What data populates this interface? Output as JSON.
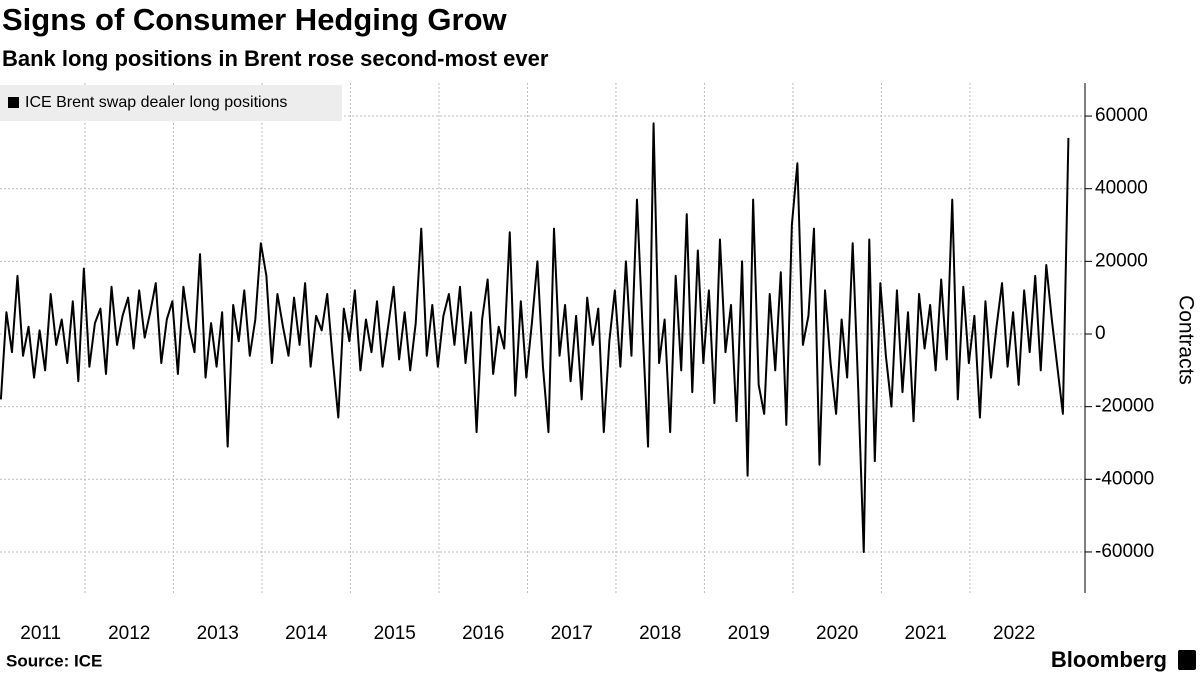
{
  "chart_data": {
    "type": "line",
    "title": "Signs of Consumer Hedging Grow",
    "subtitle": "Bank long positions in Brent rose second-most ever",
    "y_axis_label": "Contracts",
    "source": "Source: ICE",
    "brand": "Bloomberg",
    "grid": true,
    "legend": "top-left",
    "xlim": [
      2011.04,
      2023.3
    ],
    "ylim": [
      -71300,
      69100
    ],
    "yticks": [
      -60000,
      -40000,
      -20000,
      0,
      20000,
      40000,
      60000
    ],
    "xticks": [
      {
        "value": 2011,
        "label": "2011"
      },
      {
        "value": 2012,
        "label": "2012"
      },
      {
        "value": 2013,
        "label": "2013"
      },
      {
        "value": 2014,
        "label": "2014"
      },
      {
        "value": 2015,
        "label": "2015"
      },
      {
        "value": 2016,
        "label": "2016"
      },
      {
        "value": 2017,
        "label": "2017"
      },
      {
        "value": 2018,
        "label": "2018"
      },
      {
        "value": 2019,
        "label": "2019"
      },
      {
        "value": 2020,
        "label": "2020"
      },
      {
        "value": 2021,
        "label": "2021"
      },
      {
        "value": 2022,
        "label": "2022"
      }
    ],
    "x": [
      2011.05,
      2011.1125,
      2011.175,
      2011.2375,
      2011.3,
      2011.3625,
      2011.425,
      2011.4875,
      2011.55,
      2011.6125,
      2011.675,
      2011.7375,
      2011.8,
      2011.8625,
      2011.925,
      2011.9875,
      2012.05,
      2012.1125,
      2012.175,
      2012.2375,
      2012.3,
      2012.3625,
      2012.425,
      2012.4875,
      2012.55,
      2012.6125,
      2012.675,
      2012.7375,
      2012.8,
      2012.8625,
      2012.925,
      2012.9875,
      2013.05,
      2013.1125,
      2013.175,
      2013.2375,
      2013.3,
      2013.3625,
      2013.425,
      2013.4875,
      2013.55,
      2013.6125,
      2013.675,
      2013.7375,
      2013.8,
      2013.8625,
      2013.925,
      2013.9875,
      2014.05,
      2014.1125,
      2014.175,
      2014.2375,
      2014.3,
      2014.3625,
      2014.425,
      2014.4875,
      2014.55,
      2014.6125,
      2014.675,
      2014.7375,
      2014.8,
      2014.8625,
      2014.925,
      2014.9875,
      2015.05,
      2015.1125,
      2015.175,
      2015.2375,
      2015.3,
      2015.3625,
      2015.425,
      2015.4875,
      2015.55,
      2015.6125,
      2015.675,
      2015.7375,
      2015.8,
      2015.8625,
      2015.925,
      2015.9875,
      2016.05,
      2016.1125,
      2016.175,
      2016.2375,
      2016.3,
      2016.3625,
      2016.425,
      2016.4875,
      2016.55,
      2016.6125,
      2016.675,
      2016.7375,
      2016.8,
      2016.8625,
      2016.925,
      2016.9875,
      2017.05,
      2017.1125,
      2017.175,
      2017.2375,
      2017.3,
      2017.3625,
      2017.425,
      2017.4875,
      2017.55,
      2017.6125,
      2017.675,
      2017.7375,
      2017.8,
      2017.8625,
      2017.925,
      2017.9875,
      2018.05,
      2018.1125,
      2018.175,
      2018.2375,
      2018.3,
      2018.3625,
      2018.425,
      2018.4875,
      2018.55,
      2018.6125,
      2018.675,
      2018.7375,
      2018.8,
      2018.8625,
      2018.925,
      2018.9875,
      2019.05,
      2019.1125,
      2019.175,
      2019.2375,
      2019.3,
      2019.3625,
      2019.425,
      2019.4875,
      2019.55,
      2019.6125,
      2019.675,
      2019.7375,
      2019.8,
      2019.8625,
      2019.925,
      2019.9875,
      2020.05,
      2020.1125,
      2020.175,
      2020.2375,
      2020.3,
      2020.3625,
      2020.425,
      2020.4875,
      2020.55,
      2020.6125,
      2020.675,
      2020.7375,
      2020.8,
      2020.8625,
      2020.925,
      2020.9875,
      2021.05,
      2021.1125,
      2021.175,
      2021.2375,
      2021.3,
      2021.3625,
      2021.425,
      2021.4875,
      2021.55,
      2021.6125,
      2021.675,
      2021.7375,
      2021.8,
      2021.8625,
      2021.925,
      2021.9875,
      2022.05,
      2022.1125,
      2022.175,
      2022.2375,
      2022.3,
      2022.3625,
      2022.425,
      2022.4875,
      2022.55,
      2022.6125,
      2022.675,
      2022.7375,
      2022.8,
      2022.8625,
      2022.925,
      2022.9875,
      2023.05,
      2023.1125
    ],
    "series": [
      {
        "name": "ICE Brent swap dealer long positions",
        "color": "#000000",
        "values": [
          -18000,
          6000,
          -5000,
          16000,
          -6000,
          2000,
          -12000,
          1000,
          -10000,
          11000,
          -3000,
          4000,
          -8000,
          9000,
          -13000,
          18000,
          -9000,
          3000,
          7000,
          -11000,
          13000,
          -3000,
          5000,
          10000,
          -4000,
          12000,
          -1000,
          6000,
          14000,
          -8000,
          4000,
          9000,
          -11000,
          13000,
          2000,
          -5000,
          22000,
          -12000,
          3000,
          -9000,
          6000,
          -31000,
          8000,
          -2000,
          12000,
          -6000,
          4000,
          25000,
          16000,
          -8000,
          11000,
          2000,
          -6000,
          10000,
          -3000,
          14000,
          -9000,
          5000,
          1000,
          11000,
          -7000,
          -23000,
          7000,
          -2000,
          12000,
          -10000,
          4000,
          -5000,
          9000,
          -9000,
          2000,
          13000,
          -7000,
          6000,
          -10000,
          3000,
          29000,
          -6000,
          8000,
          -9000,
          5000,
          11000,
          -3000,
          13000,
          -8000,
          6000,
          -27000,
          4000,
          15000,
          -11000,
          2000,
          -4000,
          28000,
          -17000,
          9000,
          -12000,
          3000,
          20000,
          -9000,
          -27000,
          29000,
          -6000,
          8000,
          -13000,
          5000,
          -18000,
          10000,
          -3000,
          7000,
          -27000,
          -2000,
          12000,
          -9000,
          20000,
          -6000,
          37000,
          2000,
          -31000,
          58000,
          -8000,
          4000,
          -27000,
          16000,
          -10000,
          33000,
          -16000,
          23000,
          -8000,
          12000,
          -19000,
          26000,
          -5000,
          8000,
          -24000,
          20000,
          -39000,
          37000,
          -14000,
          -22000,
          11000,
          -10000,
          17000,
          -25000,
          30000,
          47000,
          -3000,
          5000,
          29000,
          -36000,
          12000,
          -8000,
          -22000,
          4000,
          -12000,
          25000,
          -15000,
          -60000,
          26000,
          -35000,
          14000,
          -6000,
          -20000,
          12000,
          -16000,
          6000,
          -24000,
          11000,
          -4000,
          8000,
          -10000,
          15000,
          -7000,
          37000,
          -18000,
          13000,
          -8000,
          5000,
          -23000,
          9000,
          -12000,
          2000,
          14000,
          -9000,
          6000,
          -14000,
          12000,
          -5000,
          16000,
          -10000,
          19000,
          4000,
          -9000,
          -22000,
          54000
        ]
      }
    ]
  }
}
